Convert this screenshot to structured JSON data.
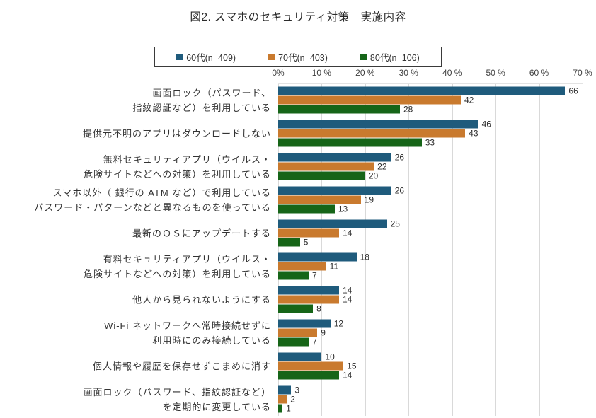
{
  "title": "図2. スマホのセキュリティ対策　実施内容",
  "x_axis_ticks": [
    "0%",
    "10 %",
    "20 %",
    "30 %",
    "40 %",
    "50 %",
    "60 %",
    "70 %"
  ],
  "colors": {
    "series_60s": "#1F5B7C",
    "series_70s": "#C97A2E",
    "series_80s": "#166518",
    "grid": "#D9D9D9",
    "legend_border": "#3A3A3A"
  },
  "chart_data": {
    "type": "bar",
    "orientation": "horizontal",
    "title": "図2. スマホのセキュリティ対策　実施内容",
    "xlabel": "",
    "ylabel": "",
    "xlim": [
      0,
      70
    ],
    "x_ticks_percent": [
      0,
      10,
      20,
      30,
      40,
      50,
      60,
      70
    ],
    "grid": true,
    "legend_position": "top",
    "categories": [
      "画面ロック（パスワード、\n指紋認証など）を利用している",
      "提供元不明のアプリはダウンロードしない",
      "無料セキュリティアプリ（ウイルス・\n危険サイトなどへの対策）を利用している",
      "スマホ以外（ 銀行の ATM  など）で利用している\nパスワード・パターンなどと異なるものを使っている",
      "最新のＯＳにアップデートする",
      "有料セキュリティアプリ（ウイルス・\n危険サイトなどへの対策）を利用している",
      "他人から見られないようにする",
      "Wi-Fi ネットワークへ常時接続せずに\n利用時にのみ接続している",
      "個人情報や履歴を保存せずこまめに消す",
      "画面ロック（パスワード、指紋認証など）\nを定期的に変更している"
    ],
    "series": [
      {
        "name": "60代(n=409)",
        "color": "#1F5B7C",
        "values": [
          66,
          46,
          26,
          26,
          25,
          18,
          14,
          12,
          10,
          3
        ]
      },
      {
        "name": "70代(n=403)",
        "color": "#C97A2E",
        "values": [
          42,
          43,
          22,
          19,
          14,
          11,
          14,
          9,
          15,
          2
        ]
      },
      {
        "name": "80代(n=106)",
        "color": "#166518",
        "values": [
          28,
          33,
          20,
          13,
          5,
          7,
          8,
          7,
          14,
          1
        ]
      }
    ]
  }
}
